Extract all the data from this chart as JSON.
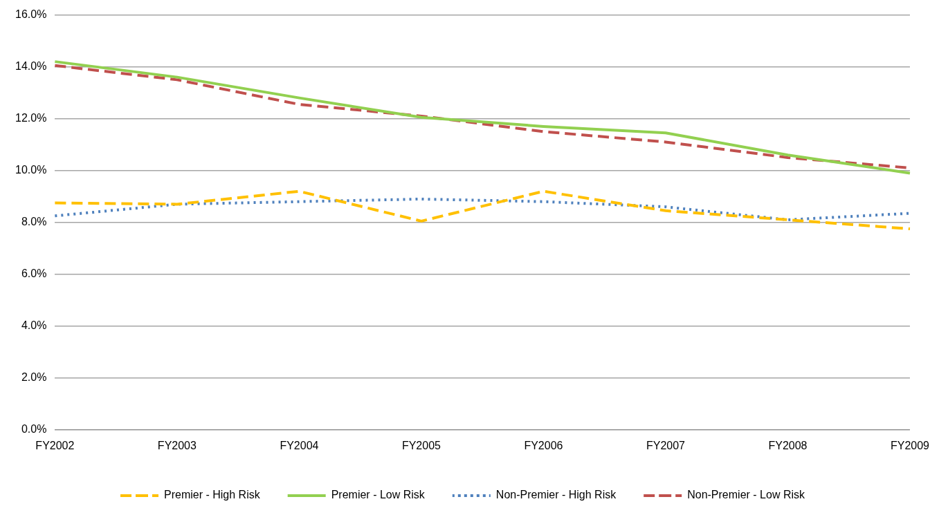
{
  "chart_data": {
    "type": "line",
    "categories": [
      "FY2002",
      "FY2003",
      "FY2004",
      "FY2005",
      "FY2006",
      "FY2007",
      "FY2008",
      "FY2009"
    ],
    "series": [
      {
        "name": "Premier - High Risk",
        "color": "#ffc000",
        "line_style": "dashed",
        "values": [
          8.75,
          8.7,
          9.2,
          8.05,
          9.2,
          8.45,
          8.1,
          7.75
        ]
      },
      {
        "name": "Premier - Low Risk",
        "color": "#92d050",
        "line_style": "solid",
        "values": [
          14.2,
          13.6,
          12.8,
          12.05,
          11.7,
          11.45,
          10.6,
          9.9
        ]
      },
      {
        "name": "Non-Premier - High Risk",
        "color": "#4f81bd",
        "line_style": "dotted",
        "values": [
          8.25,
          8.7,
          8.8,
          8.9,
          8.8,
          8.6,
          8.1,
          8.35
        ]
      },
      {
        "name": "Non-Premier - Low Risk",
        "color": "#c0504d",
        "line_style": "dashed",
        "values": [
          14.05,
          13.5,
          12.55,
          12.1,
          11.5,
          11.1,
          10.5,
          10.1
        ]
      }
    ],
    "ylim": [
      0,
      16
    ],
    "yticks": [
      {
        "value": 0,
        "label": "0.0%"
      },
      {
        "value": 2,
        "label": "2.0%"
      },
      {
        "value": 4,
        "label": "4.0%"
      },
      {
        "value": 6,
        "label": "6.0%"
      },
      {
        "value": 8,
        "label": "8.0%"
      },
      {
        "value": 10,
        "label": "10.0%"
      },
      {
        "value": 12,
        "label": "12.0%"
      },
      {
        "value": 14,
        "label": "14.0%"
      },
      {
        "value": 16,
        "label": "16.0%"
      }
    ],
    "grid": "y",
    "legend": "bottom",
    "marker": "none"
  }
}
